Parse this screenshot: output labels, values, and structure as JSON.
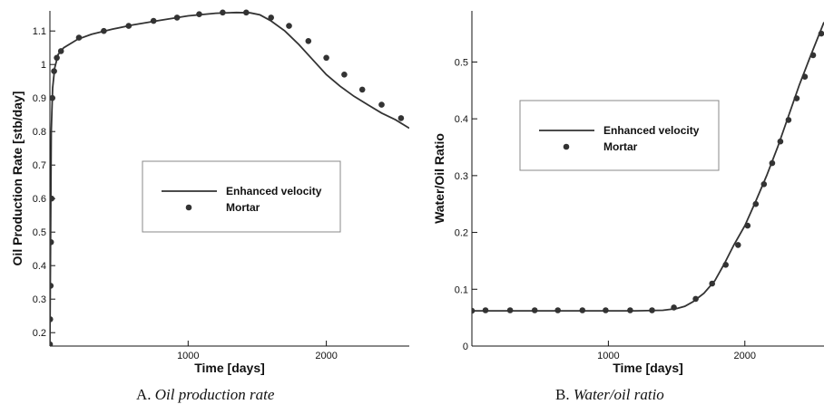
{
  "captions": [
    {
      "letter": "A.",
      "text": "Oil production rate"
    },
    {
      "letter": "B.",
      "text": "Water/oil ratio"
    }
  ],
  "chart_data": [
    {
      "type": "line",
      "xlabel": "Time [days]",
      "ylabel": "Oil Production Rate [stb/day]",
      "xlim": [
        0,
        2600
      ],
      "ylim": [
        0.16,
        1.16
      ],
      "x_ticks": [
        1000,
        2000
      ],
      "y_ticks": [
        0.2,
        0.3,
        0.4,
        0.5,
        0.6,
        0.7,
        0.8,
        0.9,
        1,
        1.1
      ],
      "y_tick_labels": [
        "0.2",
        "0.3",
        "0.4",
        "0.5",
        "0.6",
        "0.7",
        "0.8",
        "0.9",
        "1",
        "1.1"
      ],
      "legend": {
        "position": "center",
        "entries": [
          "Enhanced velocity",
          "Mortar"
        ]
      },
      "series": [
        {
          "name": "Enhanced velocity",
          "style": "line",
          "x": [
            0,
            5,
            10,
            20,
            35,
            60,
            100,
            200,
            300,
            450,
            600,
            800,
            1000,
            1200,
            1350,
            1450,
            1520,
            1600,
            1700,
            1800,
            1900,
            2000,
            2100,
            2200,
            2300,
            2400,
            2500,
            2600
          ],
          "y": [
            0.16,
            0.5,
            0.8,
            0.93,
            0.99,
            1.03,
            1.05,
            1.075,
            1.09,
            1.105,
            1.118,
            1.132,
            1.145,
            1.153,
            1.155,
            1.154,
            1.148,
            1.13,
            1.1,
            1.06,
            1.015,
            0.97,
            0.935,
            0.905,
            0.88,
            0.855,
            0.835,
            0.81
          ]
        },
        {
          "name": "Mortar",
          "style": "markers",
          "x": [
            0,
            2,
            5,
            8,
            12,
            18,
            30,
            50,
            80,
            210,
            390,
            570,
            750,
            920,
            1080,
            1250,
            1420,
            1600,
            1730,
            1870,
            2000,
            2130,
            2260,
            2400,
            2540
          ],
          "y": [
            0.165,
            0.24,
            0.34,
            0.47,
            0.6,
            0.9,
            0.98,
            1.02,
            1.04,
            1.08,
            1.1,
            1.115,
            1.13,
            1.14,
            1.15,
            1.155,
            1.155,
            1.14,
            1.115,
            1.07,
            1.02,
            0.97,
            0.925,
            0.88,
            0.84
          ]
        }
      ]
    },
    {
      "type": "line",
      "xlabel": "Time [days]",
      "ylabel": "Water/Oil Ratio",
      "xlim": [
        0,
        2580
      ],
      "ylim": [
        0,
        0.59
      ],
      "x_ticks": [
        1000,
        2000
      ],
      "y_ticks": [
        0,
        0.1,
        0.2,
        0.3,
        0.4,
        0.5
      ],
      "y_tick_labels": [
        "0",
        "0.1",
        "0.2",
        "0.3",
        "0.4",
        "0.5"
      ],
      "legend": {
        "position": "top-left",
        "entries": [
          "Enhanced velocity",
          "Mortar"
        ]
      },
      "series": [
        {
          "name": "Enhanced velocity",
          "style": "line",
          "x": [
            0,
            200,
            500,
            900,
            1200,
            1400,
            1500,
            1560,
            1620,
            1700,
            1780,
            1850,
            1920,
            2000,
            2080,
            2160,
            2240,
            2320,
            2400,
            2480,
            2580
          ],
          "y": [
            0.062,
            0.062,
            0.062,
            0.062,
            0.062,
            0.063,
            0.066,
            0.07,
            0.078,
            0.093,
            0.115,
            0.145,
            0.178,
            0.212,
            0.255,
            0.3,
            0.35,
            0.405,
            0.46,
            0.51,
            0.57
          ]
        },
        {
          "name": "Mortar",
          "style": "markers",
          "x": [
            0,
            100,
            280,
            460,
            630,
            810,
            980,
            1160,
            1320,
            1480,
            1640,
            1760,
            1860,
            1950,
            2020,
            2080,
            2140,
            2200,
            2260,
            2320,
            2380,
            2440,
            2500,
            2560
          ],
          "y": [
            0.062,
            0.063,
            0.063,
            0.063,
            0.063,
            0.063,
            0.063,
            0.063,
            0.063,
            0.068,
            0.083,
            0.11,
            0.143,
            0.178,
            0.212,
            0.25,
            0.285,
            0.322,
            0.36,
            0.398,
            0.436,
            0.474,
            0.512,
            0.55
          ]
        }
      ]
    }
  ]
}
